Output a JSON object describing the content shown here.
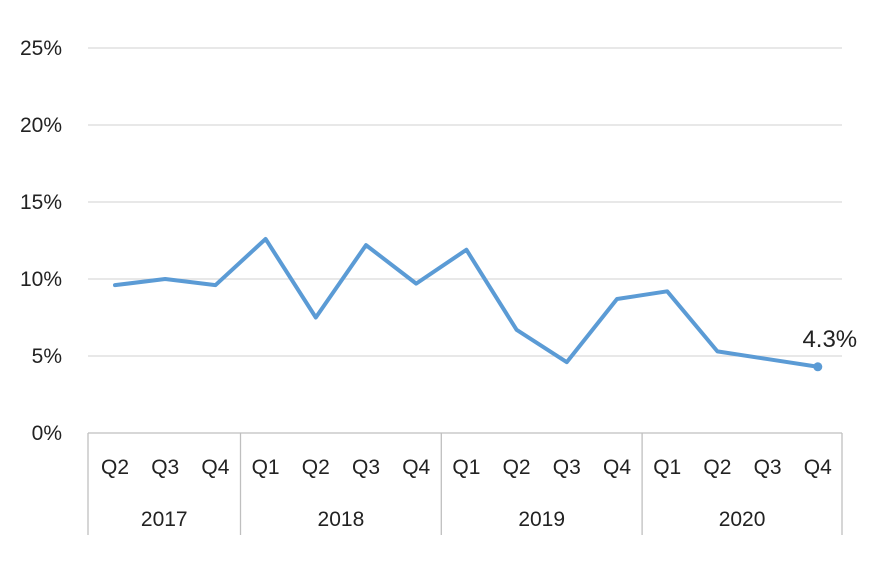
{
  "chart_data": {
    "type": "line",
    "title": "",
    "xlabel": "",
    "ylabel": "",
    "ylim": [
      0,
      25
    ],
    "y_ticks": [
      "0%",
      "5%",
      "10%",
      "15%",
      "20%",
      "25%"
    ],
    "y_tick_values": [
      0,
      5,
      10,
      15,
      20,
      25
    ],
    "grid": true,
    "categories": [
      "Q2",
      "Q3",
      "Q4",
      "Q1",
      "Q2",
      "Q3",
      "Q4",
      "Q1",
      "Q2",
      "Q3",
      "Q4",
      "Q1",
      "Q2",
      "Q3",
      "Q4"
    ],
    "groups": [
      {
        "label": "2017",
        "count": 3
      },
      {
        "label": "2018",
        "count": 4
      },
      {
        "label": "2019",
        "count": 4
      },
      {
        "label": "2020",
        "count": 4
      }
    ],
    "series": [
      {
        "color": "#5B9BD5",
        "values": [
          9.6,
          10.0,
          9.6,
          12.6,
          7.5,
          12.2,
          9.7,
          11.9,
          6.7,
          4.6,
          8.7,
          9.2,
          5.3,
          4.8,
          4.3
        ]
      }
    ],
    "data_label": {
      "index": 14,
      "text": "4.3%"
    }
  }
}
